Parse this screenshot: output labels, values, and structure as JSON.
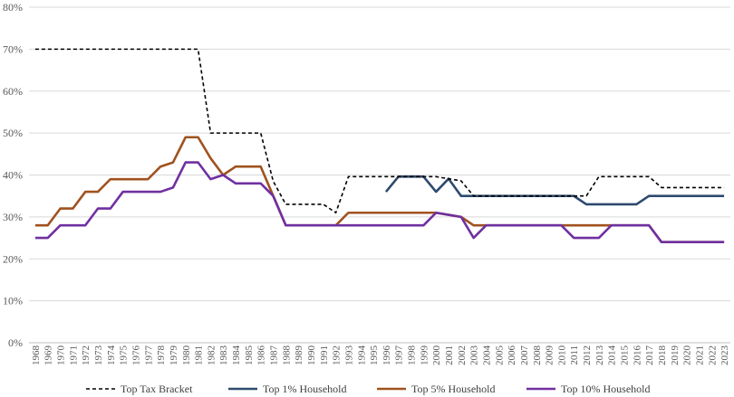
{
  "chart_data": {
    "type": "line",
    "title": "",
    "xlabel": "",
    "ylabel": "",
    "ylim": [
      0,
      80
    ],
    "y_ticks": [
      "0%",
      "10%",
      "20%",
      "30%",
      "40%",
      "50%",
      "60%",
      "70%",
      "80%"
    ],
    "grid": "horizontal",
    "legend_position": "bottom",
    "x": [
      "1968",
      "1969",
      "1970",
      "1971",
      "1972",
      "1973",
      "1974",
      "1975",
      "1976",
      "1977",
      "1978",
      "1979",
      "1980",
      "1981",
      "1982",
      "1983",
      "1984",
      "1985",
      "1986",
      "1987",
      "1988",
      "1989",
      "1990",
      "1991",
      "1992",
      "1993",
      "1994",
      "1995",
      "1996",
      "1997",
      "1998",
      "1999",
      "2000",
      "2001",
      "2002",
      "2003",
      "2004",
      "2005",
      "2006",
      "2007",
      "2008",
      "2009",
      "2010",
      "2011",
      "2012",
      "2013",
      "2014",
      "2015",
      "2016",
      "2017",
      "2018",
      "2019",
      "2020",
      "2021",
      "2022",
      "2023"
    ],
    "series": [
      {
        "name": "Top Tax Bracket",
        "color": "#000000",
        "style": "dashed",
        "values": [
          70,
          70,
          70,
          70,
          70,
          70,
          70,
          70,
          70,
          70,
          70,
          70,
          70,
          70,
          50,
          50,
          50,
          50,
          50,
          38.5,
          33,
          33,
          33,
          33,
          31,
          39.6,
          39.6,
          39.6,
          39.6,
          39.6,
          39.6,
          39.6,
          39.6,
          39.1,
          38.6,
          35,
          35,
          35,
          35,
          35,
          35,
          35,
          35,
          35,
          35,
          39.6,
          39.6,
          39.6,
          39.6,
          39.6,
          37,
          37,
          37,
          37,
          37,
          37
        ]
      },
      {
        "name": "Top 1% Household",
        "color": "#2e4a6e",
        "style": "solid",
        "values": [
          null,
          null,
          null,
          null,
          null,
          null,
          null,
          null,
          null,
          null,
          null,
          null,
          null,
          null,
          null,
          null,
          null,
          null,
          null,
          null,
          null,
          null,
          null,
          null,
          null,
          null,
          null,
          null,
          36,
          39.6,
          39.6,
          39.6,
          36,
          39.1,
          35,
          35,
          35,
          35,
          35,
          35,
          35,
          35,
          35,
          35,
          33,
          33,
          33,
          33,
          33,
          35,
          35,
          35,
          35,
          35,
          35,
          35
        ]
      },
      {
        "name": "Top 5% Household",
        "color": "#a0521e",
        "style": "solid",
        "values": [
          28,
          28,
          32,
          32,
          36,
          36,
          39,
          39,
          39,
          39,
          42,
          43,
          49,
          49,
          44,
          40,
          42,
          42,
          42,
          35,
          28,
          28,
          28,
          28,
          28,
          31,
          31,
          31,
          31,
          31,
          31,
          31,
          31,
          30.5,
          30,
          28,
          28,
          28,
          28,
          28,
          28,
          28,
          28,
          28,
          28,
          28,
          28,
          28,
          28,
          28,
          24,
          24,
          24,
          24,
          24,
          24
        ]
      },
      {
        "name": "Top 10% Household",
        "color": "#7030a0",
        "style": "solid",
        "values": [
          25,
          25,
          28,
          28,
          28,
          32,
          32,
          36,
          36,
          36,
          36,
          37,
          43,
          43,
          39,
          40,
          38,
          38,
          38,
          35,
          28,
          28,
          28,
          28,
          28,
          28,
          28,
          28,
          28,
          28,
          28,
          28,
          31,
          30.5,
          30,
          25,
          28,
          28,
          28,
          28,
          28,
          28,
          28,
          25,
          25,
          25,
          28,
          28,
          28,
          28,
          24,
          24,
          24,
          24,
          24,
          24
        ]
      }
    ]
  }
}
